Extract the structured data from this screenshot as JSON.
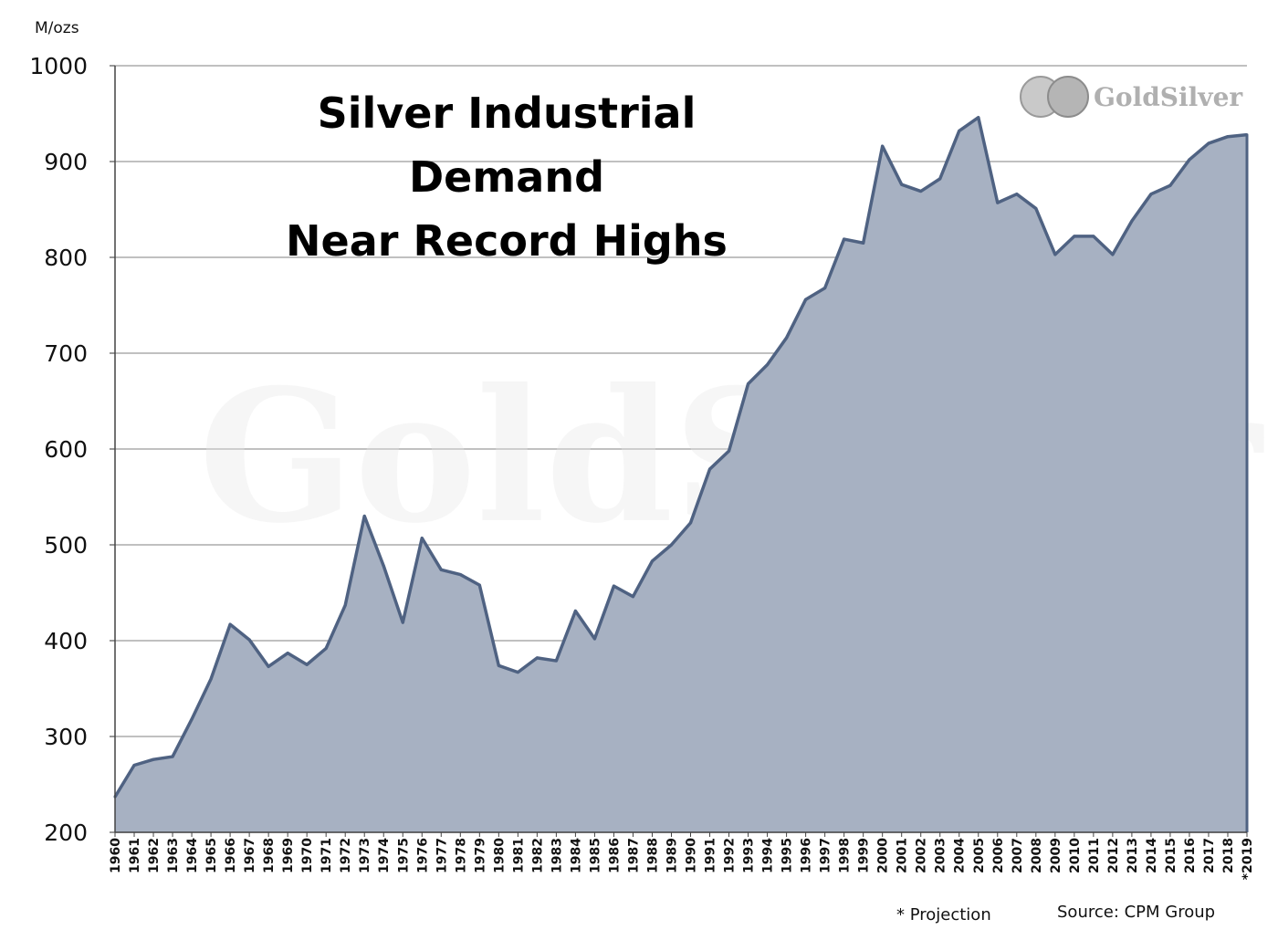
{
  "chart_data": {
    "type": "area",
    "title_lines": [
      "Silver Industrial",
      "Demand",
      "Near Record Highs"
    ],
    "ylabel": "M/ozs",
    "xlabel": "",
    "ylim": [
      200,
      1000
    ],
    "yticks": [
      200,
      300,
      400,
      500,
      600,
      700,
      800,
      900,
      1000
    ],
    "grid": true,
    "fill_color": "#a7b1c2",
    "line_color": "#4f6282",
    "x": [
      "1960",
      "1961",
      "1962",
      "1963",
      "1964",
      "1965",
      "1966",
      "1967",
      "1968",
      "1969",
      "1970",
      "1971",
      "1972",
      "1973",
      "1974",
      "1975",
      "1976",
      "1977",
      "1978",
      "1979",
      "1980",
      "1981",
      "1982",
      "1983",
      "1984",
      "1985",
      "1986",
      "1987",
      "1988",
      "1989",
      "1990",
      "1991",
      "1992",
      "1993",
      "1994",
      "1995",
      "1996",
      "1997",
      "1998",
      "1999",
      "2000",
      "2001",
      "2002",
      "2003",
      "2004",
      "2005",
      "2006",
      "2007",
      "2008",
      "2009",
      "2010",
      "2011",
      "2012",
      "2013",
      "2014",
      "2015",
      "2016",
      "2017",
      "2018",
      "*2019"
    ],
    "values": [
      237,
      270,
      276,
      279,
      318,
      360,
      417,
      401,
      373,
      387,
      375,
      392,
      437,
      530,
      478,
      419,
      507,
      474,
      469,
      458,
      374,
      367,
      382,
      379,
      431,
      402,
      457,
      446,
      483,
      500,
      523,
      579,
      598,
      668,
      688,
      716,
      756,
      768,
      819,
      815,
      916,
      876,
      869,
      882,
      932,
      946,
      857,
      866,
      851,
      803,
      822,
      822,
      803,
      838,
      866,
      875,
      902,
      919,
      926,
      928
    ]
  },
  "logo": {
    "text": "GoldSilver"
  },
  "watermark": {
    "text": "GoldSilver"
  },
  "footer": {
    "projection_note": "* Projection",
    "source": "Source: CPM Group"
  }
}
